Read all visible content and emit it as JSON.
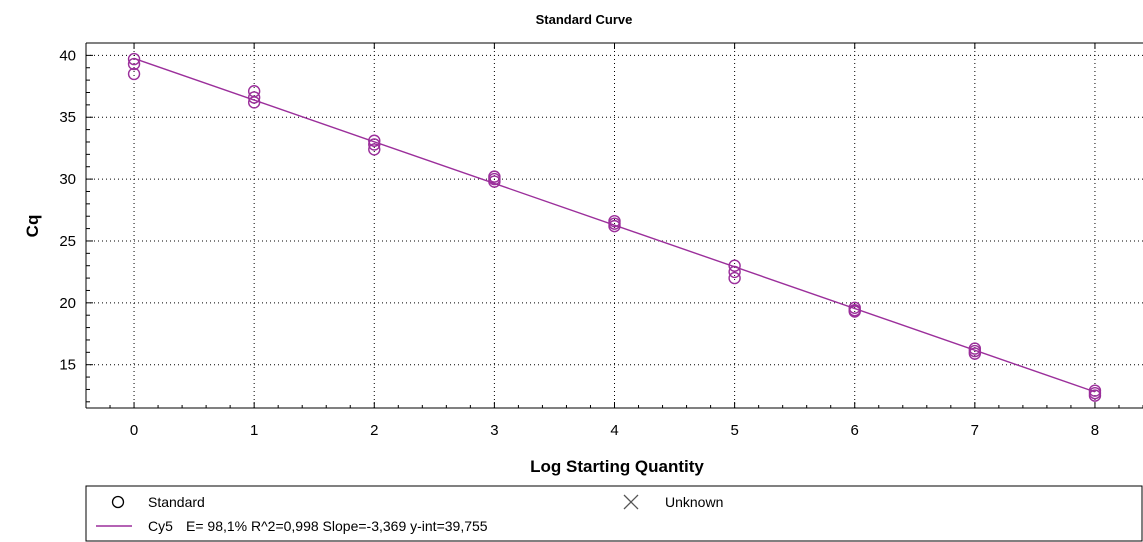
{
  "chart_data": {
    "type": "scatter",
    "title": "Standard Curve",
    "xlabel": "Log Starting Quantity",
    "ylabel": "Cq",
    "xlim": [
      -0.4,
      8.4
    ],
    "ylim": [
      11.5,
      41
    ],
    "xticks": [
      "0",
      "1",
      "2",
      "3",
      "4",
      "5",
      "6",
      "7",
      "8"
    ],
    "yticks": [
      "15",
      "20",
      "25",
      "30",
      "35",
      "40"
    ],
    "grid": true,
    "legend_position": "bottom",
    "series": [
      {
        "name": "Standard",
        "marker": "circle",
        "color": "#9b2f9b",
        "x": [
          0,
          0,
          0,
          1,
          1,
          1,
          2,
          2,
          2,
          3,
          3,
          3,
          4,
          4,
          4,
          5,
          5,
          5,
          6,
          6,
          6,
          7,
          7,
          7,
          8,
          8,
          8
        ],
        "y": [
          39.7,
          39.3,
          38.5,
          37.1,
          36.6,
          36.2,
          33.1,
          32.8,
          32.4,
          30.2,
          30.0,
          29.8,
          26.6,
          26.4,
          26.2,
          23.0,
          22.5,
          22.0,
          19.6,
          19.4,
          19.3,
          16.3,
          16.1,
          15.9,
          12.9,
          12.7,
          12.5
        ]
      },
      {
        "name": "Unknown",
        "marker": "x",
        "color": "#555555",
        "x": [],
        "y": []
      }
    ],
    "fit": {
      "name": "Cy5",
      "slope": -3.369,
      "intercept": 39.755,
      "color": "#9b2f9b",
      "stats": "E= 98,1% R^2=0,998 Slope=-3,369 y-int=39,755"
    }
  },
  "legend": {
    "standard_label": "Standard",
    "unknown_label": "Unknown",
    "fit_label": "Cy5",
    "fit_stats": "E= 98,1% R^2=0,998 Slope=-3,369 y-int=39,755"
  }
}
